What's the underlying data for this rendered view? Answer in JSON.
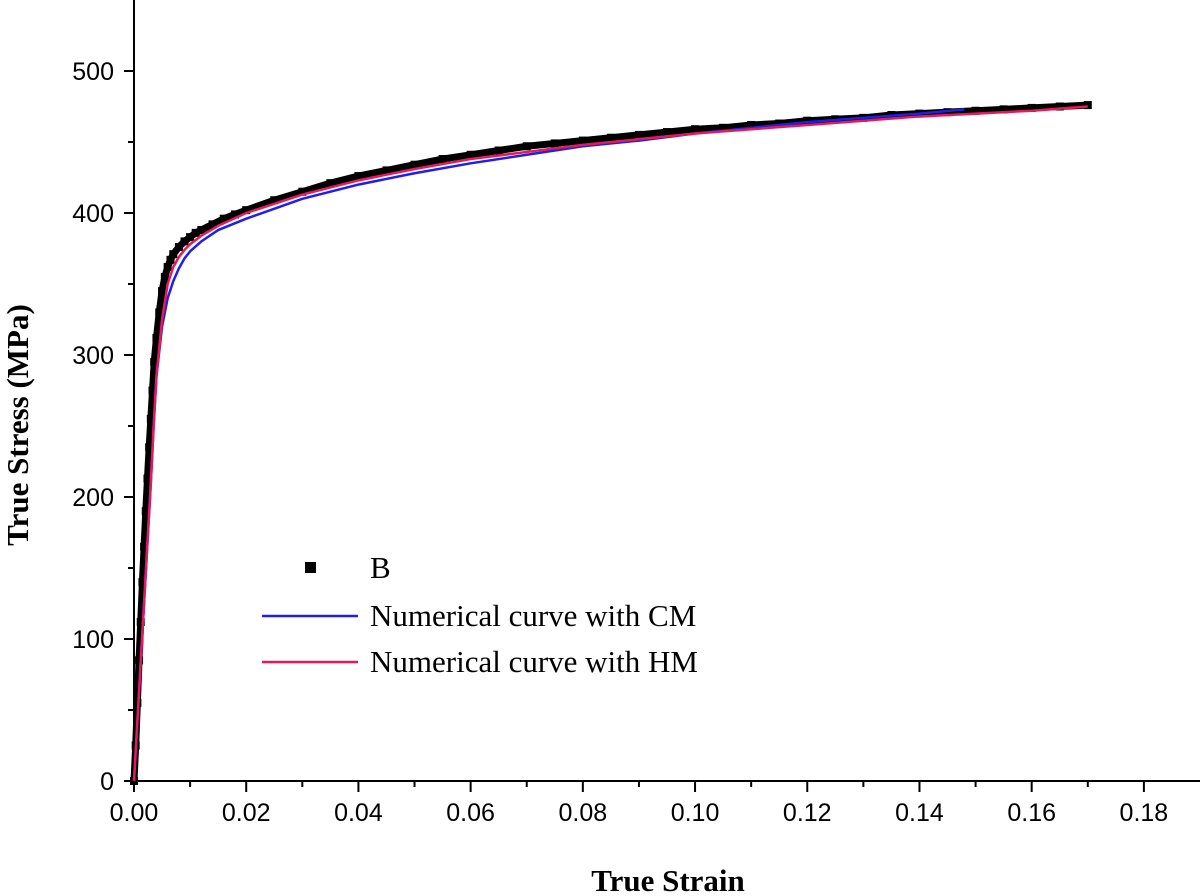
{
  "chart_data": {
    "type": "scatter",
    "xlabel": "True Strain",
    "ylabel": "True Stress (MPa)",
    "xlim": [
      0,
      0.19
    ],
    "ylim": [
      0,
      550
    ],
    "xticks": [
      0.0,
      0.02,
      0.04,
      0.06,
      0.08,
      0.1,
      0.12,
      0.14,
      0.16,
      0.18
    ],
    "xtick_labels": [
      "0.00",
      "0.02",
      "0.04",
      "0.06",
      "0.08",
      "0.10",
      "0.12",
      "0.14",
      "0.16",
      "0.18"
    ],
    "yticks": [
      0,
      100,
      200,
      300,
      400,
      500
    ],
    "ytick_labels": [
      "0",
      "100",
      "200",
      "300",
      "400",
      "500"
    ],
    "legend_position": "lower-left",
    "series": [
      {
        "name": "B",
        "kind": "markers",
        "color": "#000000",
        "points": [
          [
            0,
            0
          ],
          [
            0.0003,
            25
          ],
          [
            0.0006,
            55
          ],
          [
            0.0009,
            85
          ],
          [
            0.0012,
            112
          ],
          [
            0.0015,
            140
          ],
          [
            0.0018,
            165
          ],
          [
            0.0021,
            190
          ],
          [
            0.0024,
            213
          ],
          [
            0.0027,
            235
          ],
          [
            0.003,
            255
          ],
          [
            0.0033,
            275
          ],
          [
            0.0036,
            295
          ],
          [
            0.004,
            312
          ],
          [
            0.0045,
            330
          ],
          [
            0.005,
            345
          ],
          [
            0.0055,
            355
          ],
          [
            0.006,
            362
          ],
          [
            0.0065,
            367
          ],
          [
            0.007,
            371
          ],
          [
            0.008,
            376
          ],
          [
            0.009,
            380
          ],
          [
            0.01,
            383
          ],
          [
            0.011,
            386
          ],
          [
            0.012,
            388
          ],
          [
            0.014,
            392
          ],
          [
            0.016,
            396
          ],
          [
            0.018,
            399
          ],
          [
            0.02,
            402
          ],
          [
            0.025,
            409
          ],
          [
            0.03,
            415
          ],
          [
            0.035,
            421
          ],
          [
            0.04,
            426
          ],
          [
            0.045,
            430
          ],
          [
            0.05,
            434
          ],
          [
            0.055,
            438
          ],
          [
            0.06,
            441
          ],
          [
            0.065,
            444
          ],
          [
            0.07,
            447
          ],
          [
            0.075,
            449
          ],
          [
            0.08,
            451
          ],
          [
            0.085,
            453
          ],
          [
            0.09,
            455
          ],
          [
            0.095,
            457
          ],
          [
            0.1,
            459
          ],
          [
            0.105,
            460
          ],
          [
            0.11,
            462
          ],
          [
            0.115,
            463
          ],
          [
            0.12,
            465
          ],
          [
            0.125,
            466
          ],
          [
            0.13,
            467
          ],
          [
            0.135,
            469
          ],
          [
            0.14,
            470
          ],
          [
            0.145,
            471
          ],
          [
            0.15,
            472
          ],
          [
            0.155,
            473
          ],
          [
            0.16,
            474
          ],
          [
            0.165,
            475
          ],
          [
            0.17,
            476
          ]
        ]
      },
      {
        "name": "Numerical curve with CM",
        "kind": "line",
        "color": "#1f1fe6",
        "points": [
          [
            0,
            0
          ],
          [
            0.001,
            70
          ],
          [
            0.002,
            140
          ],
          [
            0.003,
            210
          ],
          [
            0.0035,
            250
          ],
          [
            0.004,
            285
          ],
          [
            0.005,
            320
          ],
          [
            0.006,
            340
          ],
          [
            0.007,
            352
          ],
          [
            0.008,
            361
          ],
          [
            0.009,
            368
          ],
          [
            0.01,
            373
          ],
          [
            0.012,
            380
          ],
          [
            0.015,
            388
          ],
          [
            0.02,
            396
          ],
          [
            0.03,
            410
          ],
          [
            0.04,
            420
          ],
          [
            0.05,
            428
          ],
          [
            0.06,
            435
          ],
          [
            0.07,
            441
          ],
          [
            0.08,
            447
          ],
          [
            0.09,
            451
          ],
          [
            0.1,
            456
          ],
          [
            0.11,
            460
          ],
          [
            0.12,
            464
          ],
          [
            0.13,
            467
          ],
          [
            0.14,
            470
          ],
          [
            0.148,
            473
          ]
        ]
      },
      {
        "name": "Numerical curve with HM",
        "kind": "line",
        "color": "#e6195a",
        "points": [
          [
            0,
            0
          ],
          [
            0.001,
            70
          ],
          [
            0.002,
            140
          ],
          [
            0.003,
            210
          ],
          [
            0.0035,
            250
          ],
          [
            0.004,
            285
          ],
          [
            0.005,
            325
          ],
          [
            0.006,
            350
          ],
          [
            0.007,
            362
          ],
          [
            0.008,
            369
          ],
          [
            0.009,
            374
          ],
          [
            0.01,
            378
          ],
          [
            0.012,
            384
          ],
          [
            0.015,
            391
          ],
          [
            0.02,
            400
          ],
          [
            0.03,
            413
          ],
          [
            0.04,
            423
          ],
          [
            0.05,
            431
          ],
          [
            0.06,
            438
          ],
          [
            0.07,
            443
          ],
          [
            0.08,
            448
          ],
          [
            0.09,
            452
          ],
          [
            0.1,
            456
          ],
          [
            0.11,
            459
          ],
          [
            0.12,
            462
          ],
          [
            0.13,
            465
          ],
          [
            0.14,
            468
          ],
          [
            0.15,
            470
          ],
          [
            0.16,
            472
          ],
          [
            0.17,
            475
          ]
        ]
      }
    ]
  }
}
